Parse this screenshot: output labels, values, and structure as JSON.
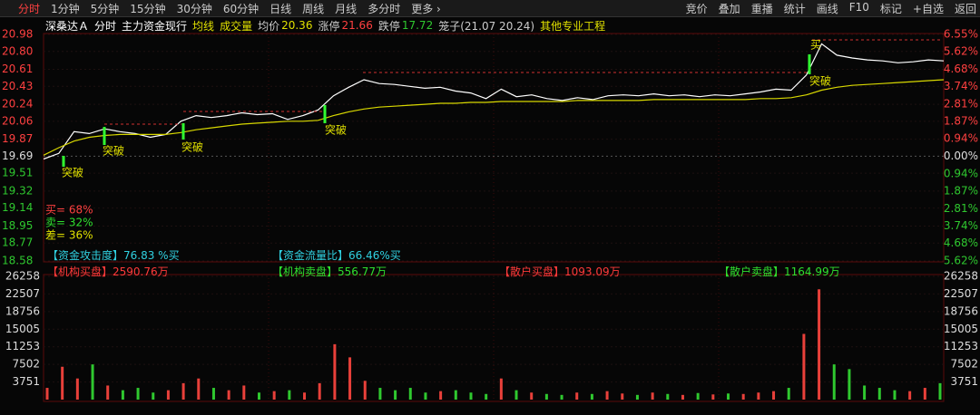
{
  "toolbar": {
    "left": [
      "分时",
      "1分钟",
      "5分钟",
      "15分钟",
      "30分钟",
      "60分钟",
      "日线",
      "周线",
      "月线",
      "多分时",
      "更多 ›"
    ],
    "right": [
      "竞价",
      "叠加",
      "重播",
      "统计",
      "画线",
      "F10",
      "标记",
      "+自选",
      "返回"
    ]
  },
  "header": {
    "stock": "深桑达Ａ",
    "items": [
      "分时",
      "主力资金现行"
    ],
    "lines": [
      "均线",
      "成交量"
    ],
    "avg_label": "均价",
    "avg": 20.36,
    "up_label": "涨停",
    "up": 21.66,
    "down_label": "跌停",
    "down": 17.72,
    "cage": "笼子(21.07 20.24)",
    "sector": "其他专业工程"
  },
  "info": [
    "【资金攻击度】76.83 %买",
    "【资金流量比】66.46%买",
    "【机构买盘】2590.76万",
    "【机构卖盘】556.77万",
    "【散户买盘】1093.09万",
    "【散户卖盘】1164.99万"
  ],
  "chart_data": [
    {
      "type": "line",
      "ylim": [
        18.58,
        20.98
      ],
      "yticks": [
        20.98,
        {
          "value": 20.8,
          "label": "20.80"
        },
        20.61,
        20.43,
        20.24,
        20.06,
        19.87,
        19.69,
        19.51,
        19.32,
        19.14,
        18.95,
        18.77,
        18.58
      ],
      "y2lim": [
        -5.62,
        6.55
      ],
      "y2ticks": [
        {
          "value": 6.55,
          "label": "6.55%"
        },
        {
          "value": 5.62,
          "label": "5.62%"
        },
        {
          "value": 4.68,
          "label": "4.68%"
        },
        {
          "value": 3.74,
          "label": "3.74%"
        },
        {
          "value": 2.81,
          "label": "2.81%"
        },
        {
          "value": 1.87,
          "label": "1.87%"
        },
        {
          "value": 0.94,
          "label": "0.94%"
        },
        {
          "value": 0,
          "label": "0.00%"
        },
        {
          "value": -0.94,
          "label": "0.94%"
        },
        {
          "value": -1.87,
          "label": "1.87%"
        },
        {
          "value": -2.81,
          "label": "2.81%"
        },
        {
          "value": -3.74,
          "label": "3.74%"
        },
        {
          "value": -4.68,
          "label": "4.68%"
        },
        {
          "value": -5.62,
          "label": "5.62%"
        }
      ],
      "series": [
        {
          "color": "#ffffff",
          "values": [
            19.66,
            19.72,
            19.95,
            19.93,
            19.98,
            19.95,
            19.93,
            19.89,
            19.92,
            20.06,
            20.12,
            20.1,
            20.12,
            20.15,
            20.13,
            20.14,
            20.08,
            20.12,
            20.18,
            20.33,
            20.42,
            20.5,
            20.46,
            20.45,
            20.43,
            20.41,
            20.42,
            20.38,
            20.36,
            20.3,
            20.4,
            20.32,
            20.34,
            20.3,
            20.28,
            20.31,
            20.29,
            20.33,
            20.34,
            20.33,
            20.35,
            20.33,
            20.34,
            20.32,
            20.34,
            20.33,
            20.35,
            20.37,
            20.4,
            20.39,
            20.55,
            20.88,
            20.76,
            20.73,
            20.71,
            20.7,
            20.68,
            20.69,
            20.71,
            20.7
          ]
        },
        {
          "color": "#d8d800",
          "values": [
            19.7,
            19.78,
            19.85,
            19.89,
            19.91,
            19.92,
            19.92,
            19.92,
            19.92,
            19.94,
            19.97,
            19.99,
            20.01,
            20.03,
            20.04,
            20.05,
            20.06,
            20.06,
            20.07,
            20.12,
            20.16,
            20.19,
            20.21,
            20.22,
            20.23,
            20.24,
            20.25,
            20.25,
            20.26,
            20.26,
            20.27,
            20.27,
            20.27,
            20.27,
            20.27,
            20.28,
            20.28,
            20.28,
            20.28,
            20.28,
            20.29,
            20.29,
            20.29,
            20.29,
            20.29,
            20.29,
            20.29,
            20.3,
            20.3,
            20.31,
            20.34,
            20.39,
            20.42,
            20.44,
            20.45,
            20.46,
            20.47,
            20.48,
            20.49,
            20.5
          ]
        }
      ],
      "annotations": [
        "突破",
        "突破",
        "突破",
        "突破",
        "突破",
        "买"
      ],
      "ratios": [
        "买= 68%",
        "卖= 32%",
        "差= 36%"
      ]
    },
    {
      "type": "bar",
      "ylim": [
        0,
        26258
      ],
      "yticks": [
        26258,
        22507,
        18756,
        15005,
        11253,
        7502,
        3751
      ],
      "values": [
        2500,
        7000,
        4500,
        7500,
        3000,
        2000,
        2500,
        1500,
        2000,
        3500,
        4500,
        2500,
        2000,
        3000,
        1500,
        1800,
        2000,
        1500,
        3500,
        11800,
        9000,
        4000,
        2500,
        2000,
        2500,
        1500,
        1800,
        2000,
        1500,
        1200,
        4500,
        2000,
        1500,
        1200,
        1000,
        1500,
        1200,
        1800,
        1300,
        1000,
        1500,
        1200,
        1000,
        1400,
        1100,
        1300,
        1200,
        1500,
        1800,
        2500,
        14000,
        23500,
        7500,
        6500,
        3000,
        2500,
        2000,
        1800,
        2500,
        3500
      ],
      "colors": [
        "#e8403a",
        "#e8403a",
        "#e8403a",
        "#2fc82f",
        "#e8403a",
        "#2fc82f",
        "#2fc82f",
        "#2fc82f",
        "#e8403a",
        "#e8403a",
        "#e8403a",
        "#2fc82f",
        "#e8403a",
        "#e8403a",
        "#2fc82f",
        "#e8403a",
        "#2fc82f",
        "#e8403a",
        "#e8403a",
        "#e8403a",
        "#e8403a",
        "#e8403a",
        "#2fc82f",
        "#2fc82f",
        "#2fc82f",
        "#2fc82f",
        "#e8403a",
        "#2fc82f",
        "#2fc82f",
        "#2fc82f",
        "#e8403a",
        "#2fc82f",
        "#e8403a",
        "#2fc82f",
        "#2fc82f",
        "#e8403a",
        "#2fc82f",
        "#e8403a",
        "#e8403a",
        "#2fc82f",
        "#e8403a",
        "#2fc82f",
        "#e8403a",
        "#2fc82f",
        "#e8403a",
        "#2fc82f",
        "#e8403a",
        "#e8403a",
        "#e8403a",
        "#2fc82f",
        "#e8403a",
        "#e8403a",
        "#2fc82f",
        "#2fc82f",
        "#2fc82f",
        "#2fc82f",
        "#2fc82f",
        "#e8403a",
        "#e8403a",
        "#2fc82f"
      ]
    }
  ]
}
